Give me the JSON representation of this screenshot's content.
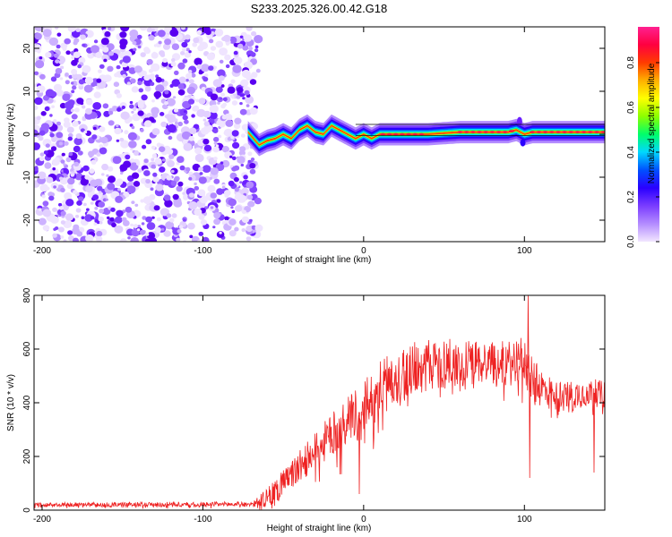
{
  "title": "S233.2025.326.00.42.G18",
  "colorbar": {
    "label": "Normalized spectral amplitude",
    "ticks": [
      "0.0",
      "0.2",
      "0.4",
      "0.6",
      "0.8"
    ],
    "tick_values": [
      0.0,
      0.2,
      0.4,
      0.6,
      0.8
    ],
    "colors": [
      "#f2e6ff",
      "#b48cff",
      "#7a3cff",
      "#2a00ff",
      "#0050ff",
      "#00d8ff",
      "#00ff6a",
      "#8cff00",
      "#ffff00",
      "#ffb000",
      "#ff3c00",
      "#ff0040",
      "#ff2090"
    ]
  },
  "chart_data": [
    {
      "type": "heatmap",
      "name": "spectrogram",
      "title": "S233.2025.326.00.42.G18",
      "xlabel": "Height of straight line (km)",
      "ylabel": "Frequency (Hz)",
      "xlim": [
        -205,
        150
      ],
      "ylim": [
        -25,
        25
      ],
      "xticks": [
        -200,
        -100,
        0,
        100
      ],
      "xtick_labels": [
        "-200",
        "-100",
        "0",
        "100"
      ],
      "yticks": [
        -20,
        -10,
        0,
        10,
        20
      ],
      "ytick_labels": [
        "-20",
        "-10",
        "0",
        "10",
        "20"
      ],
      "noise_region_x": [
        -205,
        -65
      ],
      "signal_start_x": -72,
      "ridge": {
        "x": [
          -72,
          -65,
          -60,
          -55,
          -50,
          -45,
          -40,
          -35,
          -30,
          -25,
          -20,
          -15,
          -10,
          -5,
          0,
          5,
          10,
          20,
          40,
          60,
          80,
          90,
          95,
          100,
          105,
          120,
          150
        ],
        "freq": [
          0.5,
          -2.5,
          -1.5,
          -1.0,
          0.0,
          -1.0,
          1.0,
          2.0,
          0.5,
          0.0,
          2.0,
          1.0,
          0.0,
          -1.0,
          0.0,
          -1.0,
          0.0,
          0.0,
          0.0,
          0.5,
          0.5,
          0.5,
          1.0,
          0.0,
          0.5,
          0.5,
          0.5
        ]
      },
      "colorbar_label": "Normalized spectral amplitude"
    },
    {
      "type": "line",
      "name": "snr",
      "xlabel": "Height of straight line (km)",
      "ylabel": "SNR (10 * v/v)",
      "xlim": [
        -205,
        150
      ],
      "ylim": [
        0,
        800
      ],
      "xticks": [
        -200,
        -100,
        0,
        100
      ],
      "xtick_labels": [
        "-200",
        "-100",
        "0",
        "100"
      ],
      "yticks": [
        0,
        200,
        400,
        600,
        800
      ],
      "ytick_labels": [
        "0",
        "200",
        "400",
        "600",
        "800"
      ],
      "color": "#ee2222",
      "trend": {
        "x": [
          -205,
          -70,
          -60,
          -50,
          -40,
          -30,
          -20,
          -10,
          0,
          10,
          20,
          30,
          40,
          60,
          80,
          90,
          95,
          100,
          105,
          110,
          120,
          130,
          140,
          150
        ],
        "y": [
          20,
          22,
          40,
          100,
          160,
          220,
          280,
          330,
          380,
          450,
          500,
          530,
          540,
          550,
          550,
          545,
          560,
          560,
          480,
          460,
          420,
          430,
          440,
          430
        ]
      },
      "noise_amplitude": {
        "x": [
          -205,
          -70,
          -60,
          -40,
          -20,
          0,
          20,
          40,
          80,
          100,
          120,
          150
        ],
        "y": [
          8,
          10,
          40,
          60,
          80,
          100,
          110,
          100,
          80,
          90,
          60,
          50
        ]
      },
      "spikes": [
        {
          "x": 102,
          "y": 800
        },
        {
          "x": 103,
          "y": 120
        },
        {
          "x": 96,
          "y": 620
        },
        {
          "x": 143,
          "y": 140
        },
        {
          "x": -3,
          "y": 60
        }
      ]
    }
  ]
}
